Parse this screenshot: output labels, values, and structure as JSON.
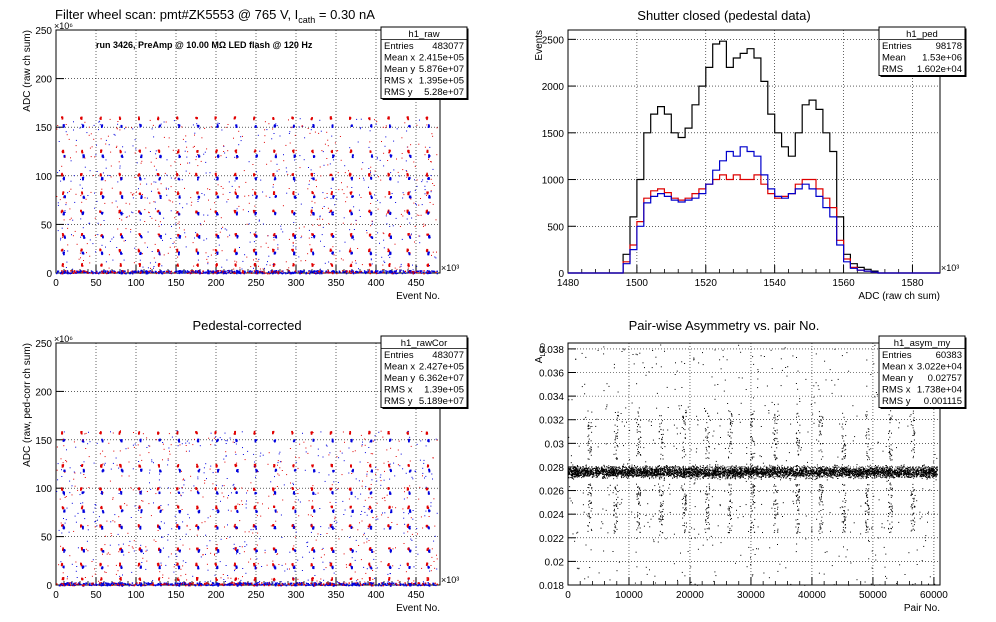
{
  "chart_data": [
    {
      "id": "raw",
      "type": "scatter",
      "title": "Filter wheel scan: pmt#ZK5553 @   765 V, I",
      "title_sub": "cath",
      "title_tail": " = 0.30 nA",
      "annotation": "run 3426, PreAmp @ 10.00 MΩ LED flash @ 120 Hz",
      "xlabel": "Event No.",
      "ylabel": "ADC (raw ch sum)",
      "x_exponent": "×10³",
      "y_exponent": "×10⁶",
      "xlim": [
        0,
        480
      ],
      "ylim": [
        0,
        250
      ],
      "xticks": [
        0,
        50,
        100,
        150,
        200,
        250,
        300,
        350,
        400,
        450
      ],
      "yticks": [
        0,
        50,
        100,
        150,
        200,
        250
      ],
      "grid": true,
      "levels": [
        {
          "y": 160,
          "color": "red"
        },
        {
          "y": 152,
          "color": "blue"
        },
        {
          "y": 126,
          "color": "red"
        },
        {
          "y": 121,
          "color": "blue"
        },
        {
          "y": 102,
          "color": "red"
        },
        {
          "y": 98,
          "color": "blue"
        },
        {
          "y": 83,
          "color": "red"
        },
        {
          "y": 79,
          "color": "blue"
        },
        {
          "y": 64,
          "color": "red"
        },
        {
          "y": 62,
          "color": "blue"
        },
        {
          "y": 40,
          "color": "red"
        },
        {
          "y": 38,
          "color": "blue"
        },
        {
          "y": 24,
          "color": "red"
        },
        {
          "y": 21,
          "color": "blue"
        },
        {
          "y": 9,
          "color": "red"
        },
        {
          "y": 2,
          "color": "blue"
        }
      ],
      "period": 24,
      "stats": {
        "name": "h1_raw",
        "rows": [
          {
            "label": "Entries",
            "value": "483077"
          },
          {
            "label": "Mean x",
            "value": "2.415e+05"
          },
          {
            "label": "Mean y",
            "value": "5.876e+07"
          },
          {
            "label": "RMS x",
            "value": "1.395e+05"
          },
          {
            "label": "RMS y",
            "value": "5.28e+07"
          }
        ]
      }
    },
    {
      "id": "ped",
      "type": "line",
      "title": "Shutter closed (pedestal data)",
      "xlabel": "ADC (raw ch sum)",
      "ylabel": "Events",
      "x_exponent": "×10³",
      "xlim": [
        1480,
        1588
      ],
      "ylim": [
        0,
        2600
      ],
      "xticks": [
        1480,
        1500,
        1520,
        1540,
        1560,
        1580
      ],
      "yticks": [
        0,
        500,
        1000,
        1500,
        2000,
        2500
      ],
      "grid": true,
      "x": [
        1494,
        1496,
        1498,
        1500,
        1502,
        1504,
        1506,
        1508,
        1510,
        1512,
        1514,
        1516,
        1518,
        1520,
        1522,
        1524,
        1526,
        1528,
        1530,
        1532,
        1534,
        1536,
        1538,
        1540,
        1542,
        1544,
        1546,
        1548,
        1550,
        1552,
        1554,
        1556,
        1558,
        1560,
        1562,
        1564,
        1566,
        1568,
        1570
      ],
      "series": [
        {
          "color": "black",
          "values": [
            0,
            200,
            600,
            1000,
            1500,
            1700,
            1780,
            1700,
            1500,
            1450,
            1550,
            1800,
            2000,
            2200,
            2450,
            2480,
            2200,
            2300,
            2350,
            2400,
            2300,
            2050,
            1700,
            1500,
            1350,
            1250,
            1500,
            1800,
            1850,
            1750,
            1500,
            1300,
            600,
            200,
            100,
            60,
            40,
            20,
            0
          ]
        },
        {
          "color": "red",
          "values": [
            0,
            120,
            300,
            550,
            800,
            880,
            900,
            860,
            800,
            780,
            800,
            850,
            900,
            950,
            1000,
            1050,
            1000,
            1050,
            1000,
            1000,
            1050,
            950,
            850,
            800,
            820,
            850,
            950,
            1000,
            1000,
            900,
            800,
            700,
            350,
            150,
            60,
            30,
            20,
            10,
            0
          ]
        },
        {
          "color": "blue",
          "values": [
            0,
            100,
            250,
            500,
            750,
            820,
            850,
            820,
            780,
            760,
            780,
            800,
            850,
            950,
            1100,
            1200,
            1300,
            1250,
            1350,
            1300,
            1250,
            1050,
            900,
            820,
            800,
            850,
            900,
            950,
            900,
            820,
            700,
            600,
            300,
            120,
            50,
            30,
            20,
            10,
            0
          ]
        }
      ],
      "stats": {
        "name": "h1_ped",
        "rows": [
          {
            "label": "Entries",
            "value": "98178"
          },
          {
            "label": "Mean",
            "value": "1.53e+06"
          },
          {
            "label": "RMS",
            "value": "1.602e+04"
          }
        ]
      }
    },
    {
      "id": "rawcor",
      "type": "scatter",
      "title": "Pedestal-corrected",
      "xlabel": "Event No.",
      "ylabel": "ADC (raw, ped-corr ch sum)",
      "x_exponent": "×10³",
      "y_exponent": "×10⁶",
      "xlim": [
        0,
        480
      ],
      "ylim": [
        0,
        250
      ],
      "xticks": [
        0,
        50,
        100,
        150,
        200,
        250,
        300,
        350,
        400,
        450
      ],
      "yticks": [
        0,
        50,
        100,
        150,
        200,
        250
      ],
      "grid": true,
      "levels": [
        {
          "y": 158,
          "color": "red"
        },
        {
          "y": 150,
          "color": "blue"
        },
        {
          "y": 124,
          "color": "red"
        },
        {
          "y": 119,
          "color": "blue"
        },
        {
          "y": 100,
          "color": "red"
        },
        {
          "y": 96,
          "color": "blue"
        },
        {
          "y": 81,
          "color": "red"
        },
        {
          "y": 77,
          "color": "blue"
        },
        {
          "y": 62,
          "color": "red"
        },
        {
          "y": 60,
          "color": "blue"
        },
        {
          "y": 38,
          "color": "red"
        },
        {
          "y": 36,
          "color": "blue"
        },
        {
          "y": 22,
          "color": "red"
        },
        {
          "y": 19,
          "color": "blue"
        },
        {
          "y": 7,
          "color": "red"
        },
        {
          "y": 1,
          "color": "blue"
        }
      ],
      "period": 24,
      "stats": {
        "name": "h1_rawCor",
        "rows": [
          {
            "label": "Entries",
            "value": "483077"
          },
          {
            "label": "Mean x",
            "value": "2.427e+05"
          },
          {
            "label": "Mean y",
            "value": "6.362e+07"
          },
          {
            "label": "RMS x",
            "value": "1.39e+05"
          },
          {
            "label": "RMS y",
            "value": "5.189e+07"
          }
        ]
      }
    },
    {
      "id": "asym",
      "type": "scatter",
      "title": "Pair-wise Asymmetry vs. pair No.",
      "xlabel": "Pair No.",
      "ylabel": "A",
      "ylabel_sub": "LED",
      "xlim": [
        0,
        61000
      ],
      "ylim": [
        0.018,
        0.0385
      ],
      "xticks": [
        0,
        10000,
        20000,
        30000,
        40000,
        50000,
        60000
      ],
      "yticks": [
        0.018,
        0.02,
        0.022,
        0.024,
        0.026,
        0.028,
        0.03,
        0.032,
        0.034,
        0.036,
        0.038
      ],
      "grid": true,
      "band_center": 0.0276,
      "band_halfwidth": 0.0007,
      "spike_x": [
        3500,
        7800,
        11500,
        15200,
        19000,
        22800,
        26500,
        30200,
        34000,
        37600,
        41400,
        45200,
        49000,
        52800,
        56500
      ],
      "stats": {
        "name": "h1_asym_my",
        "rows": [
          {
            "label": "Entries",
            "value": "60383"
          },
          {
            "label": "Mean x",
            "value": "3.022e+04"
          },
          {
            "label": "Mean y",
            "value": "0.02757"
          },
          {
            "label": "RMS x",
            "value": "1.738e+04"
          },
          {
            "label": "RMS y",
            "value": "0.001115"
          }
        ]
      }
    }
  ]
}
